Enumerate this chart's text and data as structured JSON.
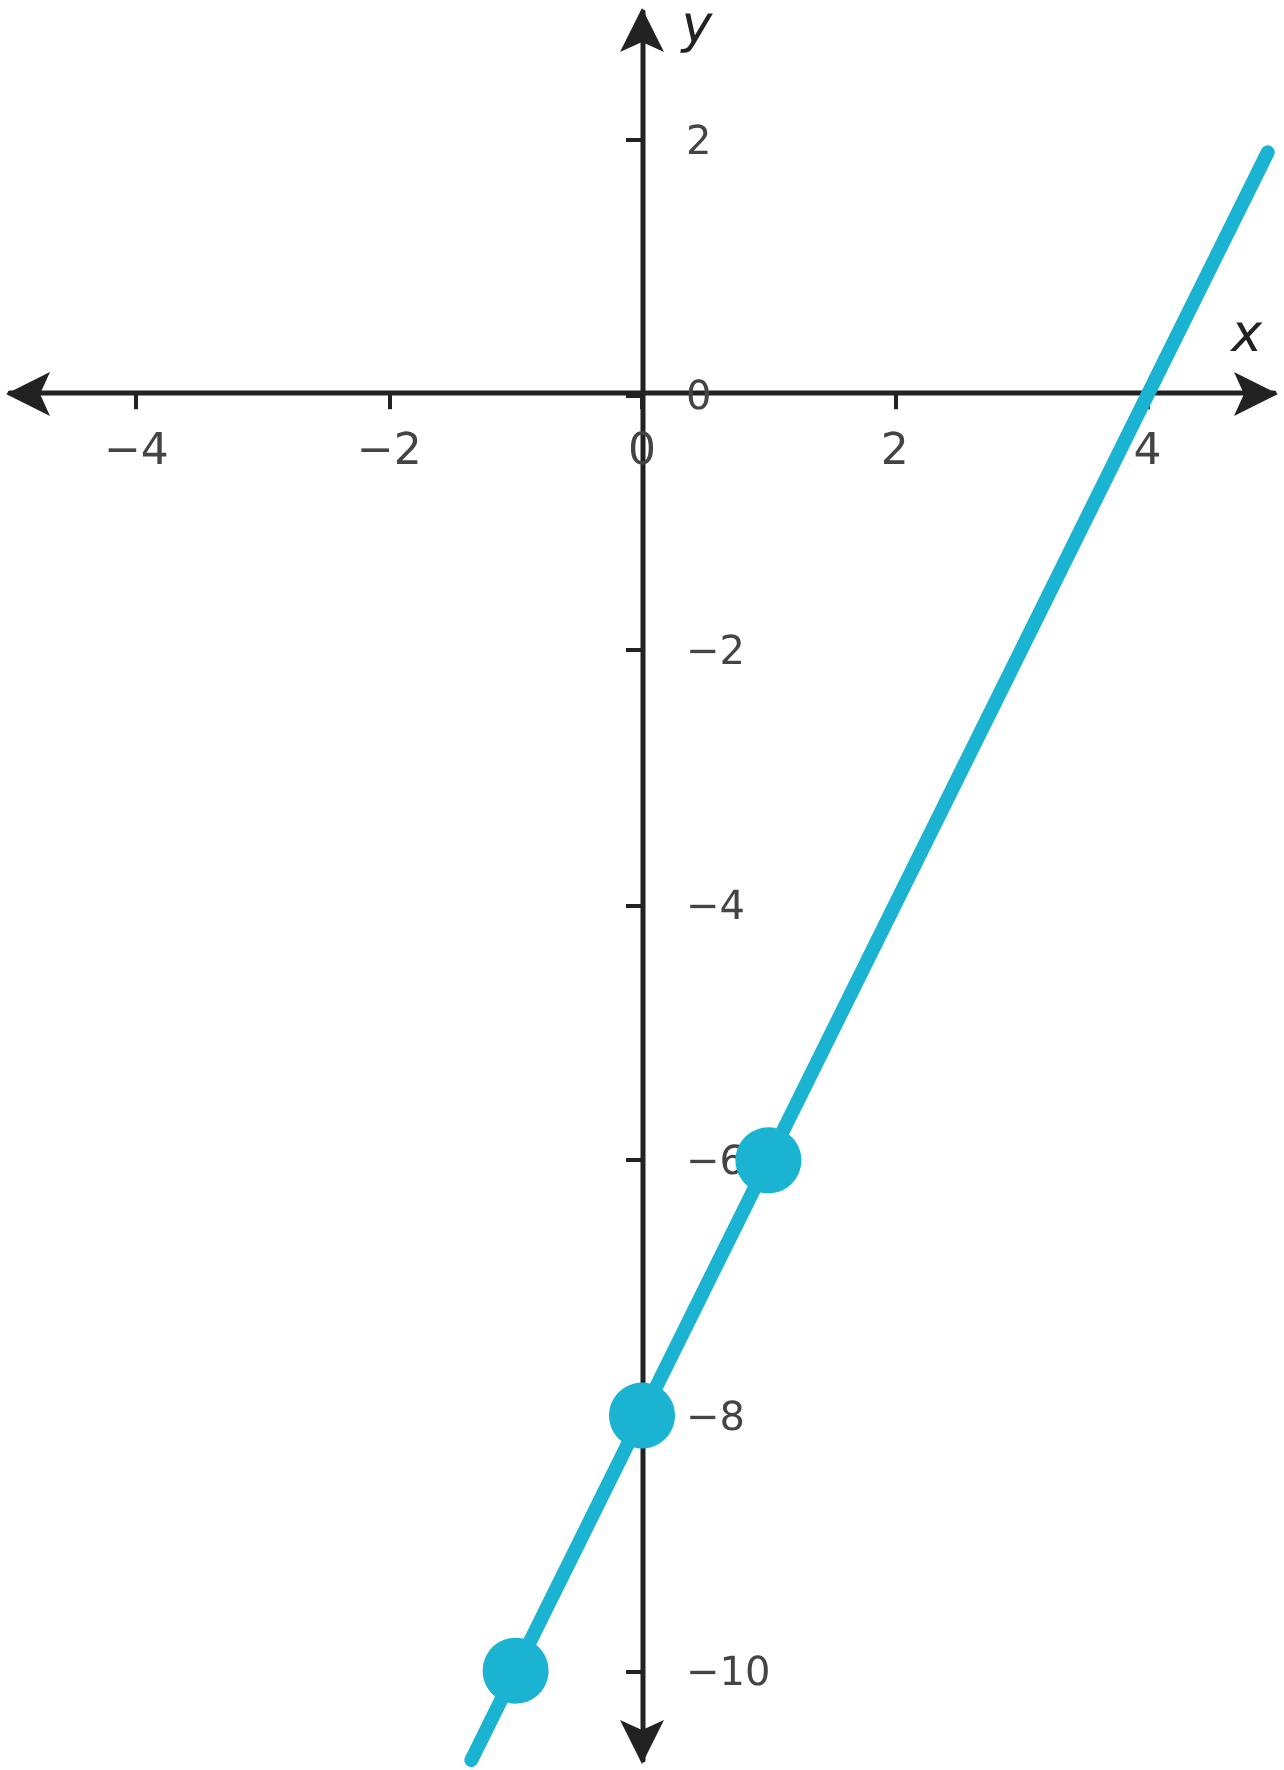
{
  "chart_data": {
    "type": "line",
    "xlabel": "x",
    "ylabel": "y",
    "xlim": [
      -5,
      5
    ],
    "ylim": [
      -10.7,
      3
    ],
    "xticks": [
      -4,
      -2,
      0,
      2,
      4
    ],
    "yticks": [
      -10,
      -8,
      -6,
      -4,
      -2,
      0,
      2
    ],
    "grid": false,
    "series": [
      {
        "type": "line",
        "color": "#1ab3d1",
        "x": [
          -1.35,
          4.95
        ],
        "values": [
          -10.7,
          1.9
        ],
        "marker": "none",
        "line_style": "solid"
      },
      {
        "type": "scatter",
        "color": "#1ab3d1",
        "x": [
          -1,
          0,
          1
        ],
        "values": [
          -10,
          -8,
          -6
        ],
        "marker": "circle"
      }
    ]
  }
}
